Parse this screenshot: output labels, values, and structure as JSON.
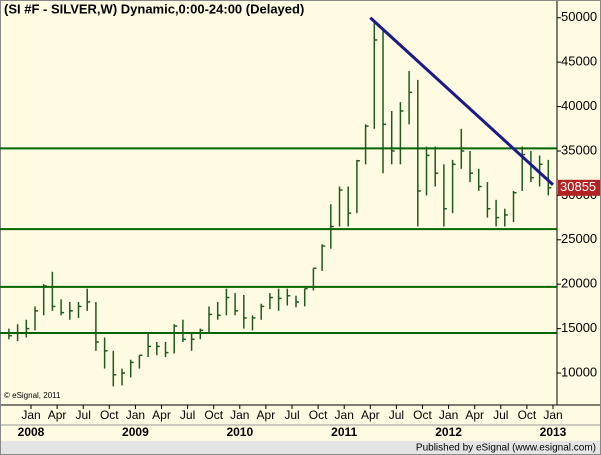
{
  "chart_data": {
    "type": "hlc",
    "title": "(SI #F - SILVER,W) Dynamic,0:00-24:00 (Delayed)",
    "copyright": "© eSignal, 2011",
    "footer": "Published by eSignal (www.esignal.com)",
    "bar_color": "#1e5a1e",
    "x": [
      "2007-10",
      "2007-11",
      "2007-12",
      "2008-01",
      "2008-02",
      "2008-03",
      "2008-04",
      "2008-05",
      "2008-06",
      "2008-07",
      "2008-08",
      "2008-09",
      "2008-10",
      "2008-11",
      "2008-12",
      "2009-01",
      "2009-02",
      "2009-03",
      "2009-04",
      "2009-05",
      "2009-06",
      "2009-07",
      "2009-08",
      "2009-09",
      "2009-10",
      "2009-11",
      "2009-12",
      "2010-01",
      "2010-02",
      "2010-03",
      "2010-04",
      "2010-05",
      "2010-06",
      "2010-07",
      "2010-08",
      "2010-09",
      "2010-10",
      "2010-11",
      "2010-12",
      "2011-01",
      "2011-02",
      "2011-03",
      "2011-04",
      "2011-05",
      "2011-06",
      "2011-07",
      "2011-08",
      "2011-09",
      "2011-10",
      "2011-11",
      "2011-12",
      "2012-01",
      "2012-02",
      "2012-03",
      "2012-04",
      "2012-05",
      "2012-06",
      "2012-07",
      "2012-08",
      "2012-09",
      "2012-10",
      "2012-11",
      "2012-12"
    ],
    "high": [
      15000,
      15500,
      16000,
      17500,
      20000,
      21400,
      18300,
      18000,
      18000,
      19500,
      18000,
      14000,
      12500,
      10500,
      11500,
      12000,
      14500,
      13500,
      13500,
      15500,
      16000,
      14500,
      15000,
      17500,
      18000,
      19500,
      19000,
      18800,
      16500,
      17800,
      19000,
      19500,
      19500,
      18700,
      19500,
      21800,
      24500,
      29000,
      31000,
      31000,
      34000,
      38000,
      49500,
      48500,
      39500,
      40500,
      44000,
      43000,
      35500,
      35500,
      33500,
      34000,
      37500,
      35000,
      33000,
      31500,
      29500,
      28500,
      30500,
      35500,
      35000,
      34500,
      34000
    ],
    "low": [
      13800,
      13600,
      14000,
      14800,
      16500,
      17000,
      16500,
      16000,
      16200,
      17000,
      12500,
      10500,
      8500,
      8600,
      9500,
      10500,
      11800,
      12000,
      11800,
      12200,
      13500,
      12500,
      13800,
      14600,
      16000,
      16500,
      16500,
      15000,
      14800,
      16000,
      17200,
      17000,
      17600,
      17400,
      17500,
      19300,
      21500,
      24000,
      26500,
      26500,
      28000,
      33500,
      37500,
      32500,
      33500,
      33500,
      38000,
      26500,
      30000,
      31000,
      26500,
      28000,
      33000,
      31500,
      30500,
      27500,
      26500,
      26500,
      27000,
      30500,
      31500,
      31000,
      30000
    ],
    "close": [
      14200,
      14500,
      15000,
      17000,
      19800,
      17500,
      16800,
      17000,
      17500,
      18000,
      13500,
      12500,
      9800,
      10000,
      11200,
      12000,
      13000,
      13000,
      12300,
      15300,
      13800,
      13800,
      14800,
      16600,
      16500,
      18500,
      17000,
      16200,
      16200,
      17500,
      18500,
      18400,
      18700,
      18000,
      19500,
      21800,
      24300,
      26500,
      30600,
      28000,
      33900,
      37800,
      47500,
      38000,
      35000,
      39500,
      41600,
      30500,
      34500,
      32500,
      28500,
      33500,
      35000,
      32500,
      31000,
      28500,
      27500,
      27800,
      30300,
      34600,
      32000,
      33500,
      30855
    ],
    "ylim": [
      6400,
      52000
    ],
    "yticks": [
      10000,
      15000,
      20000,
      25000,
      30000,
      35000,
      40000,
      45000,
      50000
    ],
    "xticks": [
      {
        "value": "2008-01",
        "label": "Jan"
      },
      {
        "value": "2008-04",
        "label": "Apr"
      },
      {
        "value": "2008-07",
        "label": "Jul"
      },
      {
        "value": "2008-10",
        "label": "Oct"
      },
      {
        "value": "2009-01",
        "label": "Jan"
      },
      {
        "value": "2009-04",
        "label": "Apr"
      },
      {
        "value": "2009-07",
        "label": "Jul"
      },
      {
        "value": "2009-10",
        "label": "Oct"
      },
      {
        "value": "2010-01",
        "label": "Jan"
      },
      {
        "value": "2010-04",
        "label": "Apr"
      },
      {
        "value": "2010-07",
        "label": "Jul"
      },
      {
        "value": "2010-10",
        "label": "Oct"
      },
      {
        "value": "2011-01",
        "label": "Jan"
      },
      {
        "value": "2011-04",
        "label": "Apr"
      },
      {
        "value": "2011-07",
        "label": "Jul"
      },
      {
        "value": "2011-10",
        "label": "Oct"
      },
      {
        "value": "2012-01",
        "label": "Jan"
      },
      {
        "value": "2012-04",
        "label": "Apr"
      },
      {
        "value": "2012-07",
        "label": "Jul"
      },
      {
        "value": "2012-10",
        "label": "Oct"
      },
      {
        "value": "2013-01",
        "label": "Jan"
      }
    ],
    "year_labels": [
      {
        "value": "2008-01",
        "label": "2008"
      },
      {
        "value": "2009-01",
        "label": "2009"
      },
      {
        "value": "2010-01",
        "label": "2010"
      },
      {
        "value": "2011-01",
        "label": "2011"
      },
      {
        "value": "2012-01",
        "label": "2012"
      },
      {
        "value": "2013-01",
        "label": "2013"
      }
    ],
    "levels": [
      35300,
      26200,
      19700,
      14500
    ],
    "level_color": "#006400",
    "trendline": [
      {
        "x": "2011-04",
        "value": 50000
      },
      {
        "x": "2013-01",
        "value": 31200
      }
    ],
    "trend_color": "#1a1a8c",
    "last_color": "#b22222"
  }
}
